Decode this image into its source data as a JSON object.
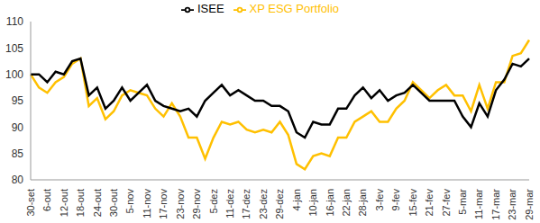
{
  "chart_data": {
    "type": "line",
    "categories": [
      "30-set",
      null,
      "6-out",
      null,
      "12-out",
      null,
      "18-out",
      null,
      "24-out",
      null,
      "30-out",
      null,
      "5-nov",
      null,
      "11-nov",
      null,
      "17-nov",
      null,
      "23-nov",
      null,
      "29-nov",
      null,
      "5-dez",
      null,
      "11-dez",
      null,
      "17-dez",
      null,
      "23-dez",
      null,
      "29-dez",
      null,
      "4-jan",
      null,
      "10-jan",
      null,
      "16-jan",
      null,
      "22-jan",
      null,
      "28-jan",
      null,
      "3-fev",
      null,
      "9-fev",
      null,
      "15-fev",
      null,
      "21-fev",
      null,
      "27-fev",
      null,
      "5-mar",
      null,
      "11-mar",
      null,
      "17-mar",
      null,
      "23-mar",
      null,
      "29-mar"
    ],
    "series": [
      {
        "name": "XP ESG Portfolio",
        "color": "#FFC000",
        "values": [
          100,
          97.5,
          96.5,
          98.5,
          99.5,
          102,
          103,
          94,
          95.5,
          91.5,
          93,
          96,
          97,
          96.5,
          96,
          93.5,
          92,
          94.5,
          92,
          88,
          88,
          84,
          88,
          91,
          90.5,
          91,
          89.5,
          89,
          89.5,
          89,
          91,
          88.5,
          83,
          82,
          84.5,
          85,
          84.5,
          88,
          88,
          91,
          92,
          93,
          91,
          91,
          93.5,
          95,
          98.5,
          97,
          95.5,
          97,
          98,
          96,
          96,
          93,
          98,
          93.5,
          98.5,
          98.5,
          103.5,
          104,
          106.5
        ]
      },
      {
        "name": "ISEE",
        "color": "#000000",
        "values": [
          100,
          100,
          98.5,
          100.5,
          100,
          102.5,
          103,
          96,
          97.5,
          93.5,
          95,
          97.5,
          95,
          96.5,
          98,
          95,
          94,
          93.5,
          93,
          93.5,
          92,
          95,
          96.5,
          98,
          96,
          97,
          96,
          95,
          95,
          94,
          94,
          93,
          89,
          88,
          91,
          90.5,
          90.5,
          93.5,
          93.5,
          96,
          97.5,
          95.5,
          97,
          95,
          96,
          96.5,
          98,
          96.5,
          95,
          95,
          95,
          95,
          92,
          90,
          94.5,
          92,
          97,
          99,
          102,
          101.5,
          103
        ]
      }
    ],
    "ylim": [
      80,
      110
    ],
    "yticks": [
      80,
      85,
      90,
      95,
      100,
      105,
      110
    ],
    "grid": false,
    "legend": "top"
  }
}
